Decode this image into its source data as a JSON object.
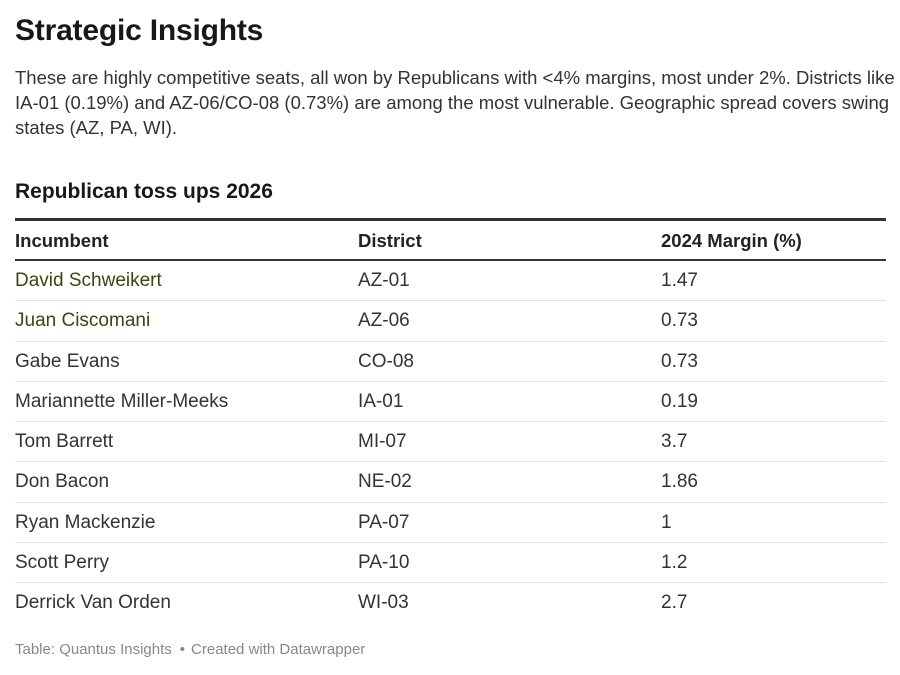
{
  "headline": "Strategic Insights",
  "description": "These are highly competitive seats, all won by Republicans with <4% margins, most under 2%. Districts like IA-01 (0.19%) and AZ-06/CO-08 (0.73%) are among the most vulnerable. Geographic spread covers swing states (AZ, PA, WI).",
  "table_title": "Republican toss ups 2026",
  "columns": [
    "Incumbent",
    "District",
    "2024 Margin (%)"
  ],
  "rows": [
    {
      "incumbent": "David Schweikert",
      "district": "AZ-01",
      "margin": "1.47",
      "name_color": "#3d4410"
    },
    {
      "incumbent": "Juan Ciscomani",
      "district": "AZ-06",
      "margin": "0.73",
      "name_color": "#3d4410"
    },
    {
      "incumbent": "Gabe Evans",
      "district": "CO-08",
      "margin": "0.73",
      "name_color": "#333333"
    },
    {
      "incumbent": "Mariannette Miller-Meeks",
      "district": "IA-01",
      "margin": "0.19",
      "name_color": "#333333"
    },
    {
      "incumbent": "Tom Barrett",
      "district": "MI-07",
      "margin": "3.7",
      "name_color": "#333333"
    },
    {
      "incumbent": "Don Bacon",
      "district": "NE-02",
      "margin": "1.86",
      "name_color": "#333333"
    },
    {
      "incumbent": "Ryan Mackenzie",
      "district": "PA-07",
      "margin": "1",
      "name_color": "#333333"
    },
    {
      "incumbent": "Scott Perry",
      "district": "PA-10",
      "margin": "1.2",
      "name_color": "#333333"
    },
    {
      "incumbent": "Derrick Van Orden",
      "district": "WI-03",
      "margin": "2.7",
      "name_color": "#333333"
    }
  ],
  "footer": {
    "source": "Table: Quantus Insights",
    "separator": "•",
    "credit": "Created with Datawrapper"
  }
}
